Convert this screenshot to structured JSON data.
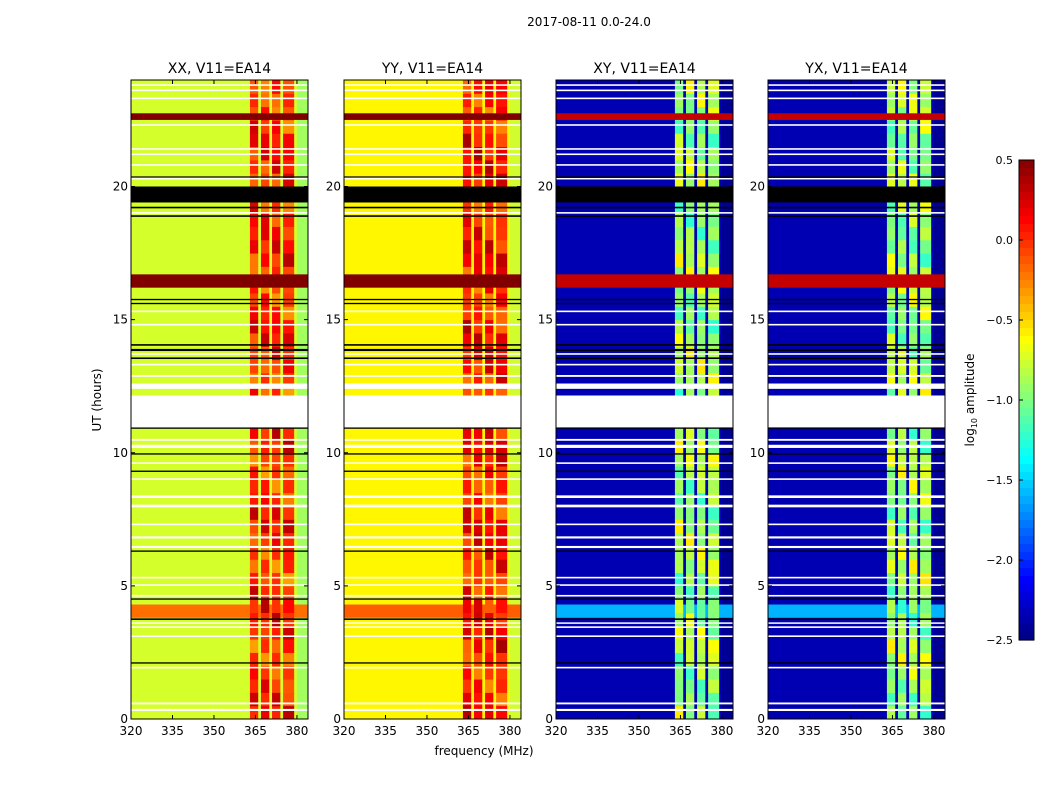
{
  "chart_data": {
    "type": "heatmap",
    "title": "2017-08-11 0.0-24.0",
    "xlabel": "frequency (MHz)",
    "ylabel": "UT (hours)",
    "xlim": [
      320,
      384
    ],
    "ylim": [
      0,
      24
    ],
    "xticks": [
      320,
      335,
      350,
      365,
      380
    ],
    "yticks": [
      0,
      5,
      10,
      15,
      20
    ],
    "colorbar": {
      "label_prefix": "log",
      "label_sub": "10",
      "label_suffix": " amplitude",
      "range": [
        -2.5,
        0.5
      ],
      "ticks": [
        "0.5",
        "0.0",
        "−0.5",
        "−1.0",
        "−1.5",
        "−2.0",
        "−2.5"
      ],
      "tick_values": [
        0.5,
        0.0,
        -0.5,
        -1.0,
        -1.5,
        -2.0,
        -2.5
      ],
      "colormap": "jet"
    },
    "rfi_channels_mhz": [
      [
        363,
        366
      ],
      [
        367,
        370
      ],
      [
        371,
        374
      ],
      [
        375,
        379
      ]
    ],
    "flagged_time_ranges_h": [
      [
        0.3,
        0.38
      ],
      [
        0.55,
        0.62
      ],
      [
        1.9,
        1.96
      ],
      [
        3.08,
        3.14
      ],
      [
        3.42,
        3.48
      ],
      [
        3.58,
        3.63
      ],
      [
        4.6,
        4.66
      ],
      [
        5.0,
        5.06
      ],
      [
        5.28,
        5.34
      ],
      [
        6.42,
        6.5
      ],
      [
        6.78,
        6.86
      ],
      [
        7.28,
        7.34
      ],
      [
        7.95,
        8.05
      ],
      [
        8.3,
        8.4
      ],
      [
        8.98,
        9.04
      ],
      [
        9.58,
        9.64
      ],
      [
        10.18,
        10.3
      ],
      [
        10.45,
        10.52
      ],
      [
        10.95,
        12.15
      ],
      [
        12.4,
        12.6
      ],
      [
        12.85,
        12.92
      ],
      [
        13.28,
        13.34
      ],
      [
        13.68,
        13.74
      ],
      [
        14.78,
        14.84
      ],
      [
        15.28,
        15.34
      ],
      [
        18.98,
        19.04
      ],
      [
        20.28,
        20.32
      ],
      [
        20.78,
        20.84
      ],
      [
        21.18,
        21.24
      ],
      [
        21.38,
        21.44
      ],
      [
        22.28,
        22.34
      ],
      [
        23.28,
        23.34
      ],
      [
        23.58,
        23.64
      ],
      [
        23.78,
        23.84
      ]
    ],
    "zero_time_ranges_h": [
      [
        2.08,
        2.13
      ],
      [
        3.72,
        3.78
      ],
      [
        4.48,
        4.53
      ],
      [
        6.28,
        6.33
      ],
      [
        9.28,
        9.33
      ],
      [
        9.93,
        9.98
      ],
      [
        10.9,
        10.95
      ],
      [
        13.52,
        13.58
      ],
      [
        13.82,
        13.9
      ],
      [
        14.02,
        14.08
      ],
      [
        15.58,
        15.63
      ],
      [
        15.73,
        15.78
      ],
      [
        18.86,
        18.92
      ],
      [
        19.18,
        19.24
      ],
      [
        19.4,
        20.0
      ],
      [
        20.34,
        20.38
      ]
    ],
    "strong_time_ranges_h": [
      [
        16.2,
        16.7
      ],
      [
        22.5,
        22.75
      ]
    ],
    "enhanced_time_ranges_h": [
      [
        3.8,
        4.3
      ]
    ],
    "panels": [
      {
        "title": "XX, V11=EA14",
        "baseline": -0.75,
        "rfi": 0.0,
        "strong": 0.5,
        "enhanced": -0.2
      },
      {
        "title": "YY, V11=EA14",
        "baseline": -0.6,
        "rfi": 0.05,
        "strong": 0.5,
        "enhanced": -0.15
      },
      {
        "title": "XY, V11=EA14",
        "baseline": -2.35,
        "rfi": -0.9,
        "strong": 0.3,
        "enhanced": -1.6
      },
      {
        "title": "YX, V11=EA14",
        "baseline": -2.35,
        "rfi": -0.9,
        "strong": 0.3,
        "enhanced": -1.6
      }
    ]
  }
}
